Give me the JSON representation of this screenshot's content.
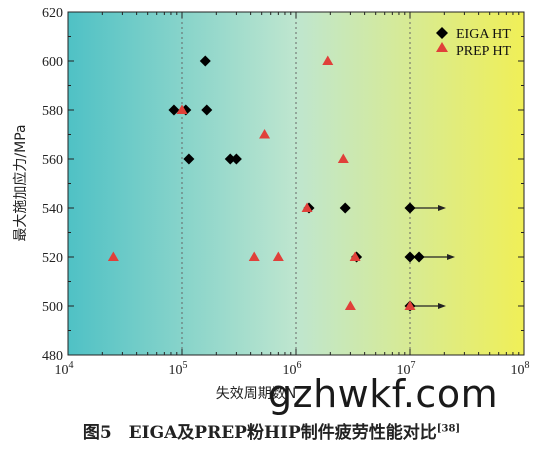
{
  "chart_data": {
    "type": "scatter",
    "xlabel": "失效周期数N",
    "ylabel": "最大施加应力/MPa",
    "xscale": "log",
    "xlim": [
      10000,
      100000000
    ],
    "ylim": [
      480,
      620
    ],
    "x_ticks": [
      {
        "value": 10000,
        "base": "10",
        "exp": "4"
      },
      {
        "value": 100000,
        "base": "10",
        "exp": "5"
      },
      {
        "value": 1000000,
        "base": "10",
        "exp": "6"
      },
      {
        "value": 10000000,
        "base": "10",
        "exp": "7"
      },
      {
        "value": 100000000,
        "base": "10",
        "exp": "8"
      }
    ],
    "y_ticks": [
      480,
      500,
      520,
      540,
      560,
      580,
      600,
      620
    ],
    "grid": "vertical dashed at decades",
    "legend_position": "top-right",
    "background": "horizontal gradient teal to yellow",
    "series": [
      {
        "name": "EIGA HT",
        "marker": "diamond",
        "color": "#000000",
        "points": [
          {
            "x": 160000,
            "y": 600
          },
          {
            "x": 85000,
            "y": 580
          },
          {
            "x": 108000,
            "y": 580
          },
          {
            "x": 165000,
            "y": 580
          },
          {
            "x": 115000,
            "y": 560
          },
          {
            "x": 265000,
            "y": 560
          },
          {
            "x": 300000,
            "y": 560
          },
          {
            "x": 1300000,
            "y": 540
          },
          {
            "x": 2700000,
            "y": 540
          },
          {
            "x": 10000000,
            "y": 540,
            "runout": true
          },
          {
            "x": 3400000,
            "y": 520
          },
          {
            "x": 10000000,
            "y": 520
          },
          {
            "x": 12000000,
            "y": 520,
            "runout": true
          },
          {
            "x": 10000000,
            "y": 500,
            "runout": true
          }
        ]
      },
      {
        "name": "PREP HT",
        "marker": "triangle",
        "color": "#e0403a",
        "points": [
          {
            "x": 1900000,
            "y": 600
          },
          {
            "x": 100000,
            "y": 580
          },
          {
            "x": 530000,
            "y": 570
          },
          {
            "x": 2600000,
            "y": 560
          },
          {
            "x": 1250000,
            "y": 540
          },
          {
            "x": 25000,
            "y": 520
          },
          {
            "x": 430000,
            "y": 520
          },
          {
            "x": 700000,
            "y": 520
          },
          {
            "x": 3300000,
            "y": 520
          },
          {
            "x": 3000000,
            "y": 500
          },
          {
            "x": 10000000,
            "y": 500
          }
        ]
      }
    ]
  },
  "caption": {
    "text": "图5　EIGA及PREP粉HIP制件疲劳性能对比",
    "ref": "[38]"
  },
  "watermark": "gzhwkf.com",
  "colors": {
    "gradient_left": "#4fc1c5",
    "gradient_mid": "#bfe6cf",
    "gradient_right": "#f0ef57",
    "eiga": "#000000",
    "prep": "#e0403a"
  }
}
